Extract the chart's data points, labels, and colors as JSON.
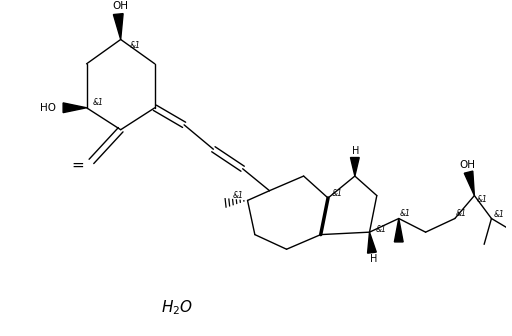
{
  "background": "#ffffff",
  "line_color": "#000000",
  "text_color": "#000000",
  "figsize": [
    5.12,
    3.36
  ],
  "dpi": 100,
  "xlim": [
    0,
    10.24
  ],
  "ylim": [
    0,
    6.72
  ]
}
